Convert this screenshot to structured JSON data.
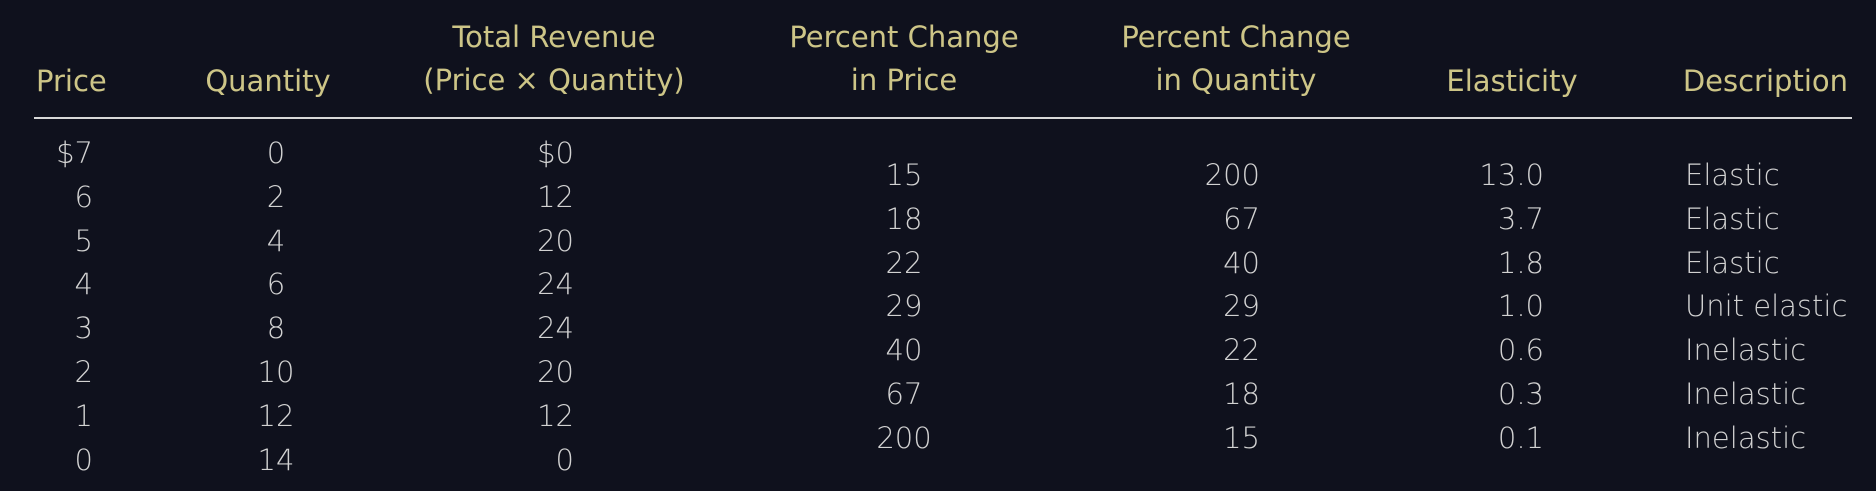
{
  "headers": {
    "price": [
      "Price"
    ],
    "quantity": [
      "Quantity"
    ],
    "total_revenue": [
      "Total Revenue",
      "(Price × Quantity)"
    ],
    "pct_price": [
      "Percent Change",
      "in Price"
    ],
    "pct_quantity": [
      "Percent Change",
      "in Quantity"
    ],
    "elasticity": [
      "Elasticity"
    ],
    "description": [
      "Description"
    ]
  },
  "rows": [
    {
      "price": "$7",
      "quantity": "0",
      "revenue": "$0"
    },
    {
      "price": "6",
      "quantity": "2",
      "revenue": "12"
    },
    {
      "price": "5",
      "quantity": "4",
      "revenue": "20"
    },
    {
      "price": "4",
      "quantity": "6",
      "revenue": "24"
    },
    {
      "price": "3",
      "quantity": "8",
      "revenue": "24"
    },
    {
      "price": "2",
      "quantity": "10",
      "revenue": "20"
    },
    {
      "price": "1",
      "quantity": "12",
      "revenue": "12"
    },
    {
      "price": "0",
      "quantity": "14",
      "revenue": "0"
    }
  ],
  "changes": [
    {
      "pct_price": "15",
      "pct_quantity": "200",
      "elasticity": "13.0",
      "description": "Elastic"
    },
    {
      "pct_price": "18",
      "pct_quantity": "67",
      "elasticity": "3.7",
      "description": "Elastic"
    },
    {
      "pct_price": "22",
      "pct_quantity": "40",
      "elasticity": "1.8",
      "description": "Elastic"
    },
    {
      "pct_price": "29",
      "pct_quantity": "29",
      "elasticity": "1.0",
      "description": "Unit elastic"
    },
    {
      "pct_price": "40",
      "pct_quantity": "22",
      "elasticity": "0.6",
      "description": "Inelastic"
    },
    {
      "pct_price": "67",
      "pct_quantity": "18",
      "elasticity": "0.3",
      "description": "Inelastic"
    },
    {
      "pct_price": "200",
      "pct_quantity": "15",
      "elasticity": "0.1",
      "description": "Inelastic"
    }
  ]
}
